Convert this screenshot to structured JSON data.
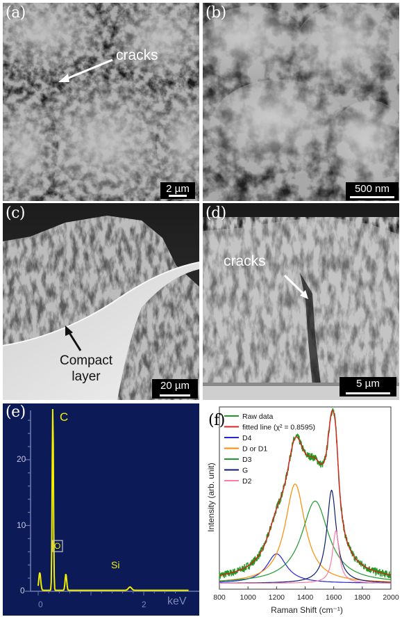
{
  "panels": {
    "a": {
      "label": "(a)",
      "annotation": "cracks",
      "scale": "2 µm"
    },
    "b": {
      "label": "(b)",
      "scale": "500 nm"
    },
    "c": {
      "label": "(c)",
      "annotation_line1": "Compact",
      "annotation_line2": "layer",
      "scale": "20 µm"
    },
    "d": {
      "label": "(d)",
      "annotation": "cracks",
      "scale": "5 µm"
    },
    "e": {
      "label": "(e)",
      "peaks": {
        "c": "C",
        "o": "O",
        "si": "Si"
      },
      "y_ticks": [
        "0",
        "10",
        "20"
      ],
      "x_ticks": [
        "0",
        "2"
      ],
      "x_unit": "keV",
      "colors": {
        "background": "#0c1a57",
        "spectrum": "#f4ef00"
      }
    },
    "f": {
      "label": "(f)"
    }
  },
  "chart_data": {
    "type": "line",
    "title": "",
    "xlabel": "Raman Shift (cm⁻¹)",
    "ylabel": "Intensity (arb. unit)",
    "xlim": [
      800,
      2000
    ],
    "x_ticks": [
      "800",
      "1000",
      "1200",
      "1400",
      "1600",
      "1800",
      "2000"
    ],
    "legend_position": "top-left",
    "series": [
      {
        "name": "Raw data",
        "color": "#1e9a1e",
        "kind": "noisy-sum"
      },
      {
        "name": "fitted line (χ² = 0.8595)",
        "color": "#e02020",
        "kind": "sum"
      },
      {
        "name": "D4",
        "color": "#2424d8",
        "center": 1200,
        "amplitude": 0.19,
        "width": 85
      },
      {
        "name": "D or D1",
        "color": "#ff8a00",
        "center": 1330,
        "amplitude": 0.64,
        "width": 85
      },
      {
        "name": "D3",
        "color": "#1a9a2a",
        "center": 1470,
        "amplitude": 0.53,
        "width": 115
      },
      {
        "name": "G",
        "color": "#0a1a6e",
        "center": 1585,
        "amplitude": 0.6,
        "width": 40
      },
      {
        "name": "D2",
        "color": "#ff7aa0",
        "center": 1615,
        "amplitude": 0.34,
        "width": 28
      }
    ]
  }
}
